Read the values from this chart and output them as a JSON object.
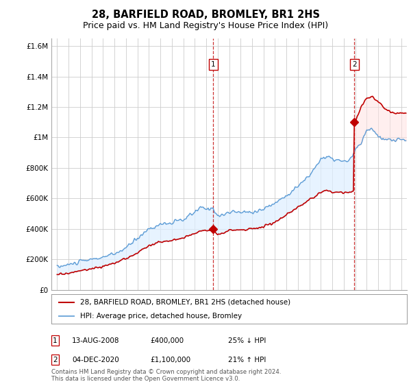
{
  "title": "28, BARFIELD ROAD, BROMLEY, BR1 2HS",
  "subtitle": "Price paid vs. HM Land Registry's House Price Index (HPI)",
  "ylabel_ticks": [
    "£0",
    "£200K",
    "£400K",
    "£600K",
    "£800K",
    "£1M",
    "£1.2M",
    "£1.4M",
    "£1.6M"
  ],
  "ylim": [
    0,
    1650000
  ],
  "yticks": [
    0,
    200000,
    400000,
    600000,
    800000,
    1000000,
    1200000,
    1400000,
    1600000
  ],
  "xlim_start": 1994.5,
  "xlim_end": 2025.5,
  "sale1_date": 2008.618,
  "sale1_price": 400000,
  "sale1_label": "1",
  "sale2_date": 2020.92,
  "sale2_price": 1100000,
  "sale2_label": "2",
  "hpi_color": "#5b9bd5",
  "hpi_fill_color": "#ddeeff",
  "price_color": "#c00000",
  "vline_color": "#c00000",
  "bg_color": "#ffffff",
  "grid_color": "#cccccc",
  "legend_label_price": "28, BARFIELD ROAD, BROMLEY, BR1 2HS (detached house)",
  "legend_label_hpi": "HPI: Average price, detached house, Bromley",
  "footer": "Contains HM Land Registry data © Crown copyright and database right 2024.\nThis data is licensed under the Open Government Licence v3.0.",
  "title_fontsize": 10.5,
  "subtitle_fontsize": 9
}
